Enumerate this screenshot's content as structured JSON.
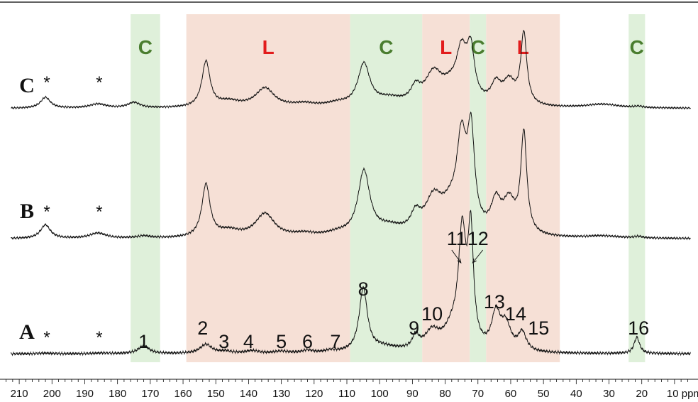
{
  "chart_data": {
    "type": "line",
    "xlabel": "ppm",
    "xlim": [
      215,
      5
    ],
    "x_reversed": true,
    "x_ticks_major": [
      210,
      200,
      190,
      180,
      170,
      160,
      150,
      140,
      130,
      120,
      110,
      100,
      90,
      80,
      70,
      60,
      50,
      40,
      30,
      20,
      10
    ],
    "x_minor_step": 2,
    "region_bands": [
      {
        "label": "C",
        "from": 176,
        "to": 167,
        "color": "#dff0da"
      },
      {
        "label": "L",
        "from": 159,
        "to": 109,
        "color": "#f6e0d6"
      },
      {
        "label": "C",
        "from": 109,
        "to": 87,
        "color": "#dff0da"
      },
      {
        "label": "L",
        "from": 87,
        "to": 72.5,
        "color": "#f6e0d6"
      },
      {
        "label": "C",
        "from": 72.5,
        "to": 67.5,
        "color": "#dff0da"
      },
      {
        "label": "L",
        "from": 67.5,
        "to": 45,
        "color": "#f6e0d6"
      },
      {
        "label": "C",
        "from": 24,
        "to": 19,
        "color": "#dff0da"
      }
    ],
    "label_colors": {
      "C": "#4a7d2f",
      "L": "#e21c1c"
    },
    "series": [
      {
        "name": "A",
        "baseline": 0.04,
        "peaks": [
          {
            "x": 202,
            "h": 0.01,
            "w": 2.5
          },
          {
            "x": 185,
            "h": 0.01,
            "w": 2.5
          },
          {
            "x": 172,
            "h": 0.12,
            "w": 2
          },
          {
            "x": 153,
            "h": 0.14,
            "w": 2.2
          },
          {
            "x": 147,
            "h": 0.03,
            "w": 2
          },
          {
            "x": 139,
            "h": 0.04,
            "w": 2.5
          },
          {
            "x": 130,
            "h": 0.03,
            "w": 2.5
          },
          {
            "x": 122,
            "h": 0.04,
            "w": 2
          },
          {
            "x": 115,
            "h": 0.03,
            "w": 2
          },
          {
            "x": 105,
            "h": 0.96,
            "w": 1.5
          },
          {
            "x": 99,
            "h": 0.08,
            "w": 6
          },
          {
            "x": 89,
            "h": 0.2,
            "w": 1.2
          },
          {
            "x": 84,
            "h": 0.28,
            "w": 2.8
          },
          {
            "x": 74.8,
            "h": 1.7,
            "w": 1.4
          },
          {
            "x": 72.2,
            "h": 1.68,
            "w": 1.0
          },
          {
            "x": 78,
            "h": 0.28,
            "w": 3
          },
          {
            "x": 64.5,
            "h": 0.54,
            "w": 1.6
          },
          {
            "x": 61.5,
            "h": 0.38,
            "w": 1.8
          },
          {
            "x": 56.5,
            "h": 0.28,
            "w": 1.5
          },
          {
            "x": 21.5,
            "h": 0.25,
            "w": 1.0
          }
        ]
      },
      {
        "name": "B",
        "baseline": 0.05,
        "peaks": [
          {
            "x": 202,
            "h": 0.26,
            "w": 1.8
          },
          {
            "x": 186,
            "h": 0.1,
            "w": 3
          },
          {
            "x": 172,
            "h": 0.04,
            "w": 2.5
          },
          {
            "x": 153,
            "h": 1.0,
            "w": 1.5
          },
          {
            "x": 146,
            "h": 0.12,
            "w": 4
          },
          {
            "x": 135,
            "h": 0.45,
            "w": 3.5
          },
          {
            "x": 123,
            "h": 0.06,
            "w": 4
          },
          {
            "x": 113,
            "h": 0.06,
            "w": 4
          },
          {
            "x": 104.8,
            "h": 1.22,
            "w": 2.2
          },
          {
            "x": 97,
            "h": 0.15,
            "w": 5
          },
          {
            "x": 89,
            "h": 0.32,
            "w": 1.8
          },
          {
            "x": 83.5,
            "h": 0.65,
            "w": 3.2
          },
          {
            "x": 75,
            "h": 1.65,
            "w": 1.8
          },
          {
            "x": 72.1,
            "h": 1.72,
            "w": 1.3
          },
          {
            "x": 78.5,
            "h": 0.38,
            "w": 3.2
          },
          {
            "x": 64.5,
            "h": 0.56,
            "w": 1.8
          },
          {
            "x": 60.5,
            "h": 0.6,
            "w": 2.3
          },
          {
            "x": 56,
            "h": 1.9,
            "w": 1.1
          },
          {
            "x": 32,
            "h": 0.04,
            "w": 6
          },
          {
            "x": 21,
            "h": 0.03,
            "w": 1.5
          }
        ]
      },
      {
        "name": "C",
        "baseline": 0.05,
        "peaks": [
          {
            "x": 202,
            "h": 0.24,
            "w": 1.8
          },
          {
            "x": 186,
            "h": 0.09,
            "w": 3
          },
          {
            "x": 175,
            "h": 0.12,
            "w": 2.2
          },
          {
            "x": 153,
            "h": 1.0,
            "w": 1.5
          },
          {
            "x": 146,
            "h": 0.12,
            "w": 4
          },
          {
            "x": 135,
            "h": 0.42,
            "w": 3.5
          },
          {
            "x": 123,
            "h": 0.07,
            "w": 4
          },
          {
            "x": 113,
            "h": 0.07,
            "w": 4
          },
          {
            "x": 104.8,
            "h": 0.92,
            "w": 2.2
          },
          {
            "x": 97,
            "h": 0.15,
            "w": 5
          },
          {
            "x": 89,
            "h": 0.32,
            "w": 1.8
          },
          {
            "x": 83.5,
            "h": 0.67,
            "w": 3.2
          },
          {
            "x": 75,
            "h": 1.05,
            "w": 2.0
          },
          {
            "x": 72.2,
            "h": 1.05,
            "w": 1.4
          },
          {
            "x": 78.5,
            "h": 0.28,
            "w": 3.2
          },
          {
            "x": 64.5,
            "h": 0.42,
            "w": 1.8
          },
          {
            "x": 60.5,
            "h": 0.5,
            "w": 2.3
          },
          {
            "x": 56,
            "h": 1.56,
            "w": 1.1
          },
          {
            "x": 32,
            "h": 0.08,
            "w": 6
          },
          {
            "x": 21,
            "h": 0.03,
            "w": 1.5
          }
        ]
      }
    ],
    "peak_labels": [
      "1",
      "2",
      "3",
      "4",
      "5",
      "6",
      "7",
      "8",
      "9",
      "10",
      "11",
      "12",
      "13",
      "14",
      "15",
      "16"
    ],
    "spinning_sideband_marker": "*"
  }
}
